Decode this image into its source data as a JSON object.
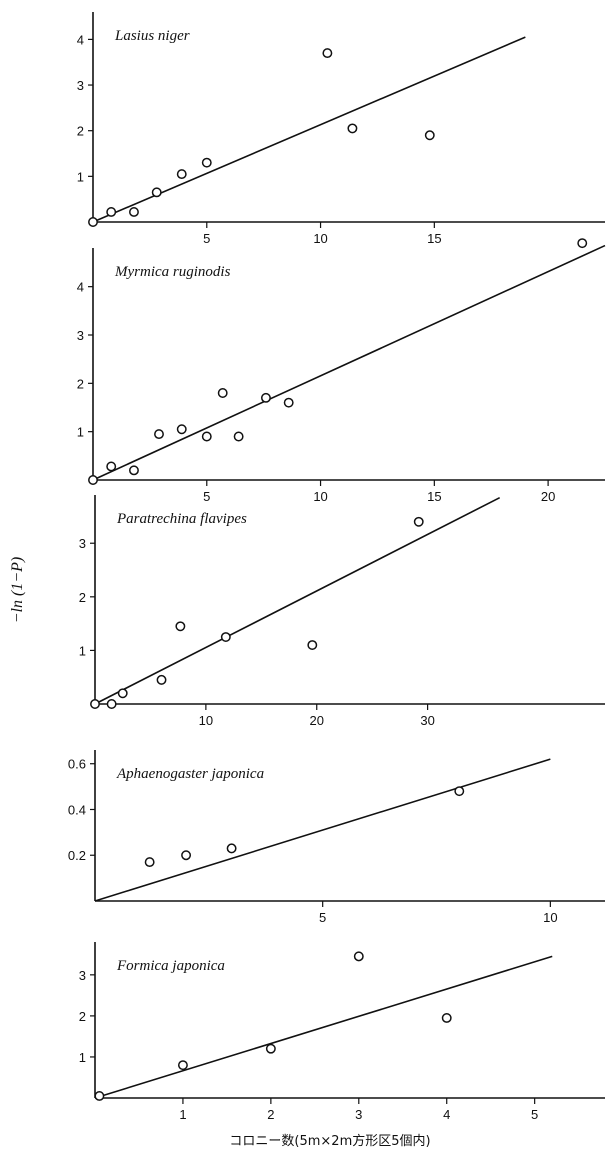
{
  "ylabel": "−ln (1−P)",
  "xlabel": "コロニー数(5m×2m方形区5個内)",
  "chart_data": [
    {
      "type": "scatter",
      "title": "Lasius niger",
      "xticks": [
        5,
        10,
        15
      ],
      "yticks": [
        1,
        2,
        3,
        4
      ],
      "xlim": [
        0,
        22.5
      ],
      "ylim": [
        0,
        4.6
      ],
      "points": [
        [
          0,
          0
        ],
        [
          0.8,
          0.22
        ],
        [
          1.8,
          0.22
        ],
        [
          2.8,
          0.65
        ],
        [
          3.9,
          1.05
        ],
        [
          5.0,
          1.3
        ],
        [
          10.3,
          3.7
        ],
        [
          11.4,
          2.05
        ],
        [
          14.8,
          1.9
        ]
      ],
      "fit_line": [
        [
          0,
          0
        ],
        [
          19,
          4.05
        ]
      ]
    },
    {
      "type": "scatter",
      "title": "Myrmica ruginodis",
      "xticks": [
        5,
        10,
        15,
        20
      ],
      "yticks": [
        1,
        2,
        3,
        4
      ],
      "xlim": [
        0,
        22.5
      ],
      "ylim": [
        0,
        4.8
      ],
      "points": [
        [
          0,
          0
        ],
        [
          0.8,
          0.28
        ],
        [
          1.8,
          0.2
        ],
        [
          2.9,
          0.95
        ],
        [
          3.9,
          1.05
        ],
        [
          5.0,
          0.9
        ],
        [
          5.7,
          1.8
        ],
        [
          6.4,
          0.9
        ],
        [
          7.6,
          1.7
        ],
        [
          8.6,
          1.6
        ],
        [
          21.5,
          4.9
        ]
      ],
      "fit_line": [
        [
          0,
          0
        ],
        [
          22.5,
          4.85
        ]
      ]
    },
    {
      "type": "scatter",
      "title": "Paratrechina flavipes",
      "xticks": [
        10,
        20,
        30
      ],
      "yticks": [
        1,
        2,
        3
      ],
      "xlim": [
        0,
        46
      ],
      "ylim": [
        0,
        3.9
      ],
      "points": [
        [
          0,
          0
        ],
        [
          1.5,
          0
        ],
        [
          2.5,
          0.2
        ],
        [
          6,
          0.45
        ],
        [
          7.7,
          1.45
        ],
        [
          11.8,
          1.25
        ],
        [
          19.6,
          1.1
        ],
        [
          29.2,
          3.4
        ]
      ],
      "fit_line": [
        [
          0,
          0
        ],
        [
          36.5,
          3.85
        ]
      ]
    },
    {
      "type": "scatter",
      "title": "Aphaenogaster japonica",
      "xticks": [
        5,
        10
      ],
      "yticks": [
        0.2,
        0.4,
        0.6
      ],
      "xlim": [
        0,
        11.2
      ],
      "ylim": [
        0,
        0.66
      ],
      "points": [
        [
          1.2,
          0.17
        ],
        [
          2,
          0.2
        ],
        [
          3,
          0.23
        ],
        [
          8,
          0.48
        ]
      ],
      "fit_line": [
        [
          0,
          0
        ],
        [
          10,
          0.62
        ]
      ]
    },
    {
      "type": "scatter",
      "title": "Formica japonica",
      "xticks": [
        1,
        2,
        3,
        4,
        5
      ],
      "yticks": [
        1,
        2,
        3
      ],
      "xlim": [
        0,
        5.8
      ],
      "ylim": [
        0,
        3.8
      ],
      "points": [
        [
          0.05,
          0.05
        ],
        [
          1,
          0.8
        ],
        [
          2,
          1.2
        ],
        [
          3,
          3.45
        ],
        [
          4,
          1.95
        ]
      ],
      "fit_line": [
        [
          0,
          0
        ],
        [
          5.2,
          3.45
        ]
      ]
    }
  ]
}
